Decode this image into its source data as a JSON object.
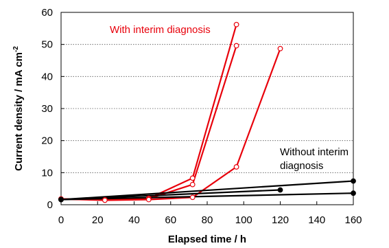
{
  "chart_data": {
    "type": "line",
    "title": "",
    "xlabel": "Elapsed time / h",
    "ylabel": "Current density / mA cm",
    "ylabel_superscript": "-2",
    "xlim": [
      0,
      160
    ],
    "ylim": [
      0,
      60
    ],
    "xticks": [
      "0",
      "20",
      "40",
      "60",
      "80",
      "100",
      "120",
      "140",
      "160"
    ],
    "yticks": [
      "0",
      "10",
      "20",
      "30",
      "40",
      "50",
      "60"
    ],
    "grid": "horizontal dotted",
    "colors": {
      "with": "#e8000b",
      "without": "#000000"
    },
    "annotations": [
      {
        "lines": [
          "With interim diagnosis"
        ],
        "color": "#e8000b"
      },
      {
        "lines": [
          "Without interim",
          "diagnosis"
        ],
        "color": "#000000"
      }
    ],
    "series": [
      {
        "group": "with",
        "marker": "open-circle",
        "x": [
          0,
          24,
          48,
          72,
          96
        ],
        "y": [
          1.8,
          1.5,
          2.0,
          8.3,
          56.2
        ]
      },
      {
        "group": "with",
        "marker": "open-circle",
        "x": [
          0,
          24,
          48,
          72,
          96
        ],
        "y": [
          1.8,
          1.5,
          1.9,
          6.3,
          49.6
        ]
      },
      {
        "group": "with",
        "marker": "open-circle",
        "x": [
          0,
          24,
          48,
          72,
          96,
          120
        ],
        "y": [
          1.8,
          1.4,
          1.6,
          2.3,
          11.8,
          48.7
        ]
      },
      {
        "group": "without",
        "marker": "filled-circle",
        "x": [
          0,
          160
        ],
        "y": [
          1.6,
          7.4
        ]
      },
      {
        "group": "without",
        "marker": "filled-circle",
        "x": [
          0,
          120
        ],
        "y": [
          1.6,
          4.6
        ]
      },
      {
        "group": "without",
        "marker": "filled-circle",
        "x": [
          0,
          160
        ],
        "y": [
          1.6,
          3.6
        ]
      }
    ]
  }
}
